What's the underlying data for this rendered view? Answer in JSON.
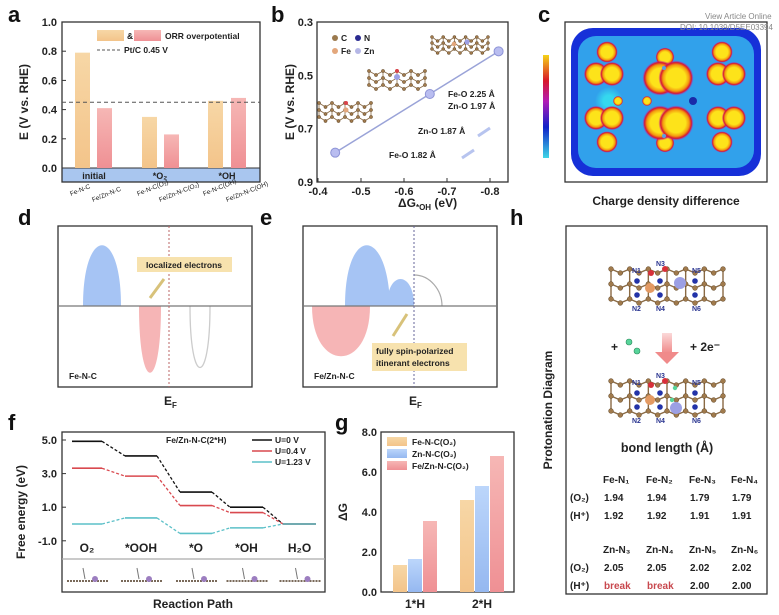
{
  "watermark": {
    "line1": "View Article Online",
    "line2": "DOI: 10.1039/D5EE03394"
  },
  "colors": {
    "orange": "#f6cf95",
    "pink": "#f3a3a5",
    "blue": "#a9c7f4",
    "band": "#a9c6ef",
    "u0": "#111111",
    "u04": "#d9494f",
    "u123": "#5cc0c8"
  },
  "panel_labels": {
    "a": "a",
    "b": "b",
    "c": "c",
    "d": "d",
    "e": "e",
    "f": "f",
    "g": "g",
    "h": "h"
  },
  "chart_data": [
    {
      "panel": "a",
      "type": "bar",
      "ylabel": "E (V vs. RHE)",
      "ylim": [
        0,
        1.0
      ],
      "yticks": [
        "0.0",
        "0.2",
        "0.4",
        "0.6",
        "0.8",
        "1.0"
      ],
      "groups": [
        "initial",
        "*O₂",
        "*OH"
      ],
      "bar_labels": [
        "Fe-N-C",
        "Fe/Zn-N-C",
        "Fe-N-C(O₂)",
        "Fe/Zn-N-C(O₂)",
        "Fe-N-C(OH)",
        "Fe/Zn-N-C(OH)"
      ],
      "values": [
        0.79,
        0.41,
        0.35,
        0.23,
        0.46,
        0.48
      ],
      "legend": {
        "amp": "&",
        "orr": "ORR overpotential",
        "ptc": "Pt/C 0.45 V"
      },
      "reference_line": 0.45
    },
    {
      "panel": "b",
      "type": "scatter",
      "ylabel": "E (V vs. RHE)",
      "xlabel_main": "ΔG",
      "xlabel_sub": "*OH",
      "xlabel_unit": " (eV)",
      "xlim": [
        -0.4,
        -0.8
      ],
      "ylim": [
        0.3,
        0.9
      ],
      "y_inverted": true,
      "xticks": [
        "-0.4",
        "-0.5",
        "-0.6",
        "-0.7",
        "-0.8"
      ],
      "yticks": [
        "0.3",
        "0.5",
        "0.7",
        "0.9"
      ],
      "points": [
        {
          "x": -0.44,
          "y": 0.79
        },
        {
          "x": -0.66,
          "y": 0.57
        },
        {
          "x": -0.82,
          "y": 0.41
        }
      ],
      "legend": [
        "C",
        "N",
        "Fe",
        "Zn"
      ],
      "annotations": [
        "Fe-O 1.82 Å",
        "Zn-O 1.87 Å",
        "Fe-O 2.25 Å",
        "Zn-O 1.97 Å"
      ]
    },
    {
      "panel": "f",
      "type": "line",
      "ylabel": "Free energy (eV)",
      "xlabel": "Reaction Path",
      "title": "Fe/Zn-N-C(2*H)",
      "ylim": [
        -1.8,
        5.4
      ],
      "yticks": [
        "5.0",
        "3.0",
        "1.0",
        "-1.0"
      ],
      "categories": [
        "O₂",
        "*OOH",
        "*O",
        "*OH",
        "H₂O"
      ],
      "series": [
        {
          "name": "U=0 V",
          "values": [
            4.92,
            4.05,
            1.9,
            1.0,
            0
          ]
        },
        {
          "name": "U=0.4 V",
          "values": [
            3.32,
            2.85,
            1.1,
            0.68,
            0
          ]
        },
        {
          "name": "U=1.23 V",
          "values": [
            0,
            0.36,
            -0.56,
            -0.23,
            0
          ]
        }
      ]
    },
    {
      "panel": "g",
      "type": "bar",
      "ylabel": "ΔG",
      "ylim": [
        0,
        8.0
      ],
      "yticks": [
        "0.0",
        "2.0",
        "4.0",
        "6.0",
        "8.0"
      ],
      "categories": [
        "1*H",
        "2*H"
      ],
      "series": [
        {
          "name": "Fe-N-C(O₂)",
          "values": [
            1.35,
            4.6
          ]
        },
        {
          "name": "Zn-N-C(O₂)",
          "values": [
            1.65,
            5.3
          ]
        },
        {
          "name": "Fe/Zn-N-C(O₂)",
          "values": [
            3.55,
            6.8
          ]
        }
      ]
    }
  ],
  "panel_c": {
    "caption": "Charge density difference"
  },
  "panel_d": {
    "callout": "localized electrons",
    "sample": "Fe-N-C",
    "ef_main": "E",
    "ef_sub": "F"
  },
  "panel_e": {
    "callout_line1": "fully spin-polarized",
    "callout_line2": "itinerant electrons",
    "sample": "Fe/Zn-N-C",
    "ef_main": "E",
    "ef_sub": "F"
  },
  "panel_h": {
    "side_label": "Protonation Diagram",
    "atom_labels": [
      "N1",
      "N2",
      "N3",
      "N4",
      "N5",
      "N6"
    ],
    "plus_left": "+",
    "plus_right": "+ 2e⁻",
    "table_title": "bond length (Å)",
    "fe_headers": [
      "Fe-N₁",
      "Fe-N₂",
      "Fe-N₃",
      "Fe-N₄"
    ],
    "fe_rows": [
      {
        "label": "(O₂)",
        "values": [
          "1.94",
          "1.94",
          "1.79",
          "1.79"
        ]
      },
      {
        "label": "(H⁺)",
        "values": [
          "1.92",
          "1.92",
          "1.91",
          "1.91"
        ]
      }
    ],
    "zn_headers": [
      "Zn-N₃",
      "Zn-N₄",
      "Zn-N₅",
      "Zn-N₆"
    ],
    "zn_rows": [
      {
        "label": "(O₂)",
        "values": [
          "2.05",
          "2.05",
          "2.02",
          "2.02"
        ]
      },
      {
        "label": "(H⁺)",
        "values": [
          "break",
          "break",
          "2.00",
          "2.00"
        ]
      }
    ],
    "break_color": "#c8484e"
  }
}
